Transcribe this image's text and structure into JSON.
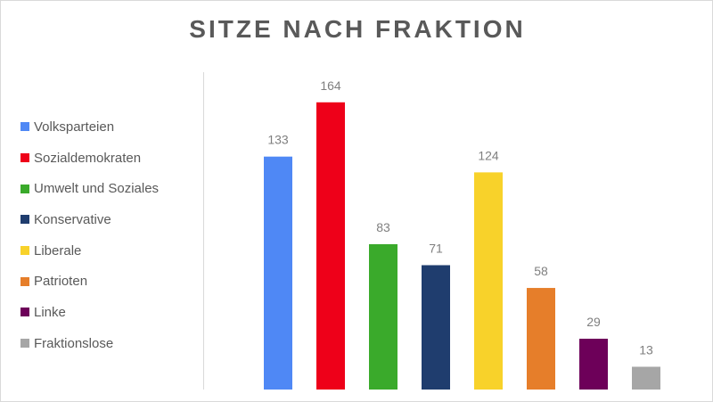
{
  "chart_data": {
    "type": "bar",
    "title": "SITZE NACH FRAKTION",
    "categories": [
      "Volksparteien",
      "Sozialdemokraten",
      "Umwelt und Soziales",
      "Konservative",
      "Liberale",
      "Patrioten",
      "Linke",
      "Fraktionslose"
    ],
    "values": [
      133,
      164,
      83,
      71,
      124,
      58,
      29,
      13
    ],
    "colors": [
      "#4f88f5",
      "#ee0019",
      "#3aaa2b",
      "#1f3d6e",
      "#f8d22a",
      "#e67e2a",
      "#6d0059",
      "#a6a6a6"
    ],
    "data_labels": [
      "133",
      "164",
      "83",
      "71",
      "124",
      "58",
      "29",
      "13"
    ],
    "legend": {
      "position": "left",
      "entries": [
        "Volksparteien",
        "Sozialdemokraten",
        "Umwelt und Soziales",
        "Konservative",
        "Liberale",
        "Patrioten",
        "Linke",
        "Fraktionslose"
      ]
    },
    "ylim": [
      0,
      170
    ],
    "grid": false,
    "xlabel": "",
    "ylabel": ""
  }
}
